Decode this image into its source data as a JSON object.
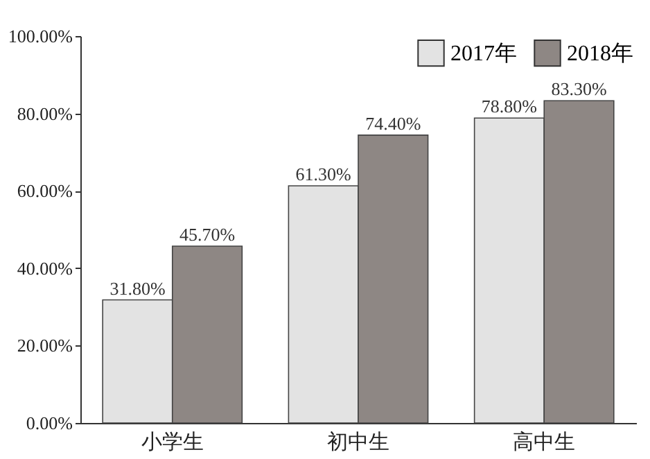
{
  "chart_data": {
    "type": "bar",
    "categories": [
      "小学生",
      "初中生",
      "高中生"
    ],
    "series": [
      {
        "name": "2017年",
        "color": "#e3e3e3",
        "values": [
          31.8,
          61.3,
          78.8
        ],
        "value_labels": [
          "31.80%",
          "61.30%",
          "78.80%"
        ]
      },
      {
        "name": "2018年",
        "color": "#8e8784",
        "values": [
          45.7,
          74.4,
          83.3
        ],
        "value_labels": [
          "45.70%",
          "74.40%",
          "83.30%"
        ]
      }
    ],
    "ylim": [
      0,
      100
    ],
    "yticks": [
      {
        "value": 0,
        "label": "0.00%"
      },
      {
        "value": 20,
        "label": "20.00%"
      },
      {
        "value": 40,
        "label": "40.00%"
      },
      {
        "value": 60,
        "label": "60.00%"
      },
      {
        "value": 80,
        "label": "80.00%"
      },
      {
        "value": 100,
        "label": "100.00%"
      }
    ],
    "grid": false,
    "legend": "top right"
  }
}
